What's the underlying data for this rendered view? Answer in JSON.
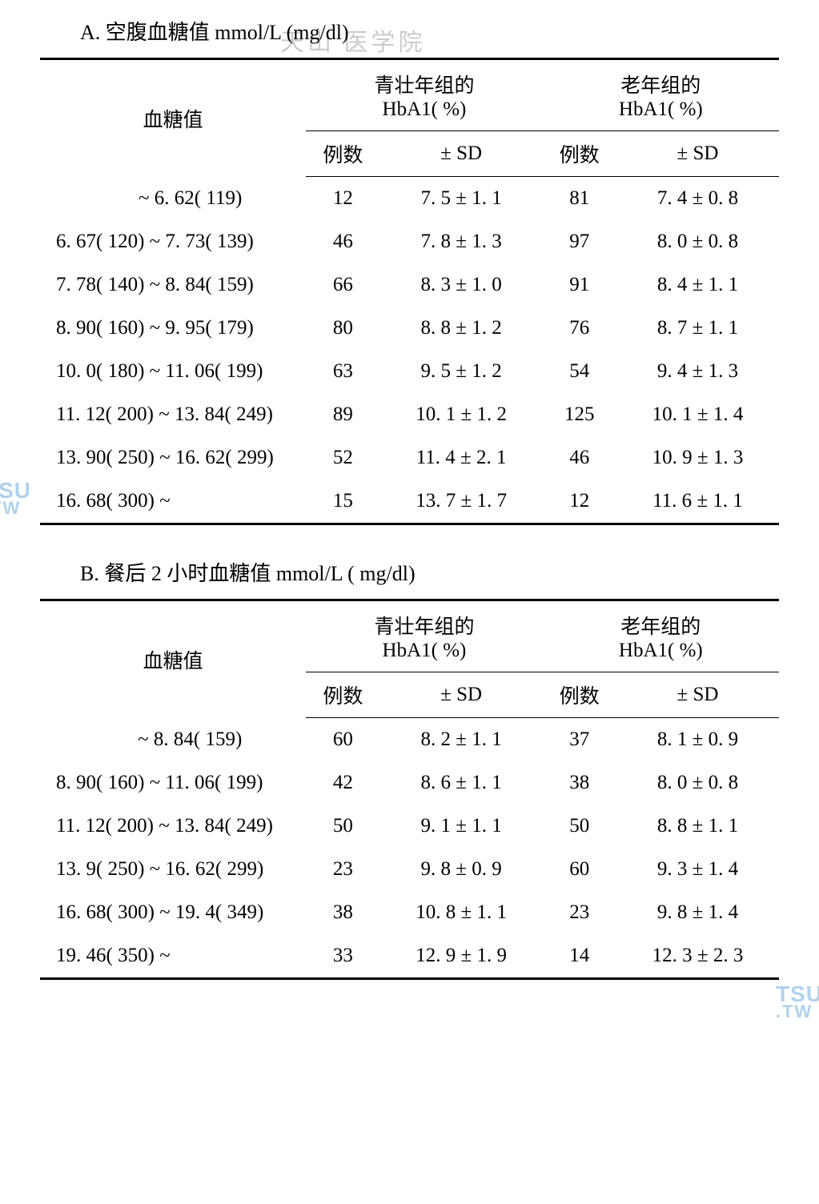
{
  "tableA": {
    "title": "A. 空腹血糖值 mmol/L (mg/dl)",
    "headers": {
      "col1": "血糖值",
      "group1": "青壮年组的\nHbA1( %)",
      "group2": "老年组的\nHbA1( %)",
      "sub_n": "例数",
      "sub_sd": "± SD"
    },
    "rows": [
      {
        "range": "~ 6. 62( 119)",
        "n1": "12",
        "sd1": "7. 5 ± 1. 1",
        "n2": "81",
        "sd2": "7. 4 ± 0. 8",
        "first": true
      },
      {
        "range": "6. 67( 120) ~ 7. 73( 139)",
        "n1": "46",
        "sd1": "7. 8 ± 1. 3",
        "n2": "97",
        "sd2": "8. 0 ± 0. 8"
      },
      {
        "range": "7. 78( 140) ~ 8. 84( 159)",
        "n1": "66",
        "sd1": "8. 3 ± 1. 0",
        "n2": "91",
        "sd2": "8. 4 ± 1. 1"
      },
      {
        "range": "8. 90( 160) ~ 9. 95( 179)",
        "n1": "80",
        "sd1": "8. 8 ± 1. 2",
        "n2": "76",
        "sd2": "8. 7 ± 1. 1"
      },
      {
        "range": "10. 0( 180) ~ 11. 06( 199)",
        "n1": "63",
        "sd1": "9. 5 ± 1. 2",
        "n2": "54",
        "sd2": "9. 4 ± 1. 3"
      },
      {
        "range": "11. 12( 200) ~ 13. 84( 249)",
        "n1": "89",
        "sd1": "10. 1 ± 1. 2",
        "n2": "125",
        "sd2": "10. 1 ± 1. 4"
      },
      {
        "range": "13. 90( 250) ~ 16. 62( 299)",
        "n1": "52",
        "sd1": "11. 4 ± 2. 1",
        "n2": "46",
        "sd2": "10. 9 ± 1. 3"
      },
      {
        "range": "16. 68( 300) ~",
        "n1": "15",
        "sd1": "13. 7 ± 1. 7",
        "n2": "12",
        "sd2": "11. 6 ± 1. 1"
      }
    ]
  },
  "tableB": {
    "title": "B. 餐后 2 小时血糖值 mmol/L ( mg/dl)",
    "headers": {
      "col1": "血糖值",
      "group1": "青壮年组的\nHbA1( %)",
      "group2": "老年组的\nHbA1( %)",
      "sub_n": "例数",
      "sub_sd": "± SD"
    },
    "rows": [
      {
        "range": "~ 8. 84( 159)",
        "n1": "60",
        "sd1": "8. 2 ± 1. 1",
        "n2": "37",
        "sd2": "8. 1 ± 0. 9",
        "first": true
      },
      {
        "range": "8. 90( 160) ~ 11. 06( 199)",
        "n1": "42",
        "sd1": "8. 6 ± 1. 1",
        "n2": "38",
        "sd2": "8. 0 ± 0. 8"
      },
      {
        "range": "11. 12( 200) ~ 13. 84( 249)",
        "n1": "50",
        "sd1": "9. 1 ± 1. 1",
        "n2": "50",
        "sd2": "8. 8 ± 1. 1"
      },
      {
        "range": "13. 9( 250) ~ 16. 62( 299)",
        "n1": "23",
        "sd1": "9. 8 ± 0. 9",
        "n2": "60",
        "sd2": "9. 3 ± 1. 4"
      },
      {
        "range": "16. 68( 300) ~ 19. 4( 349)",
        "n1": "38",
        "sd1": "10. 8 ± 1. 1",
        "n2": "23",
        "sd2": "9. 8 ± 1. 4"
      },
      {
        "range": "19. 46( 350) ~",
        "n1": "33",
        "sd1": "12. 9 ± 1. 9",
        "n2": "14",
        "sd2": "12. 3 ± 2. 3"
      }
    ]
  },
  "watermark": {
    "faint": "天山 医学院",
    "tsu_l1": "TSU",
    "tsu_l2": ".TW"
  }
}
